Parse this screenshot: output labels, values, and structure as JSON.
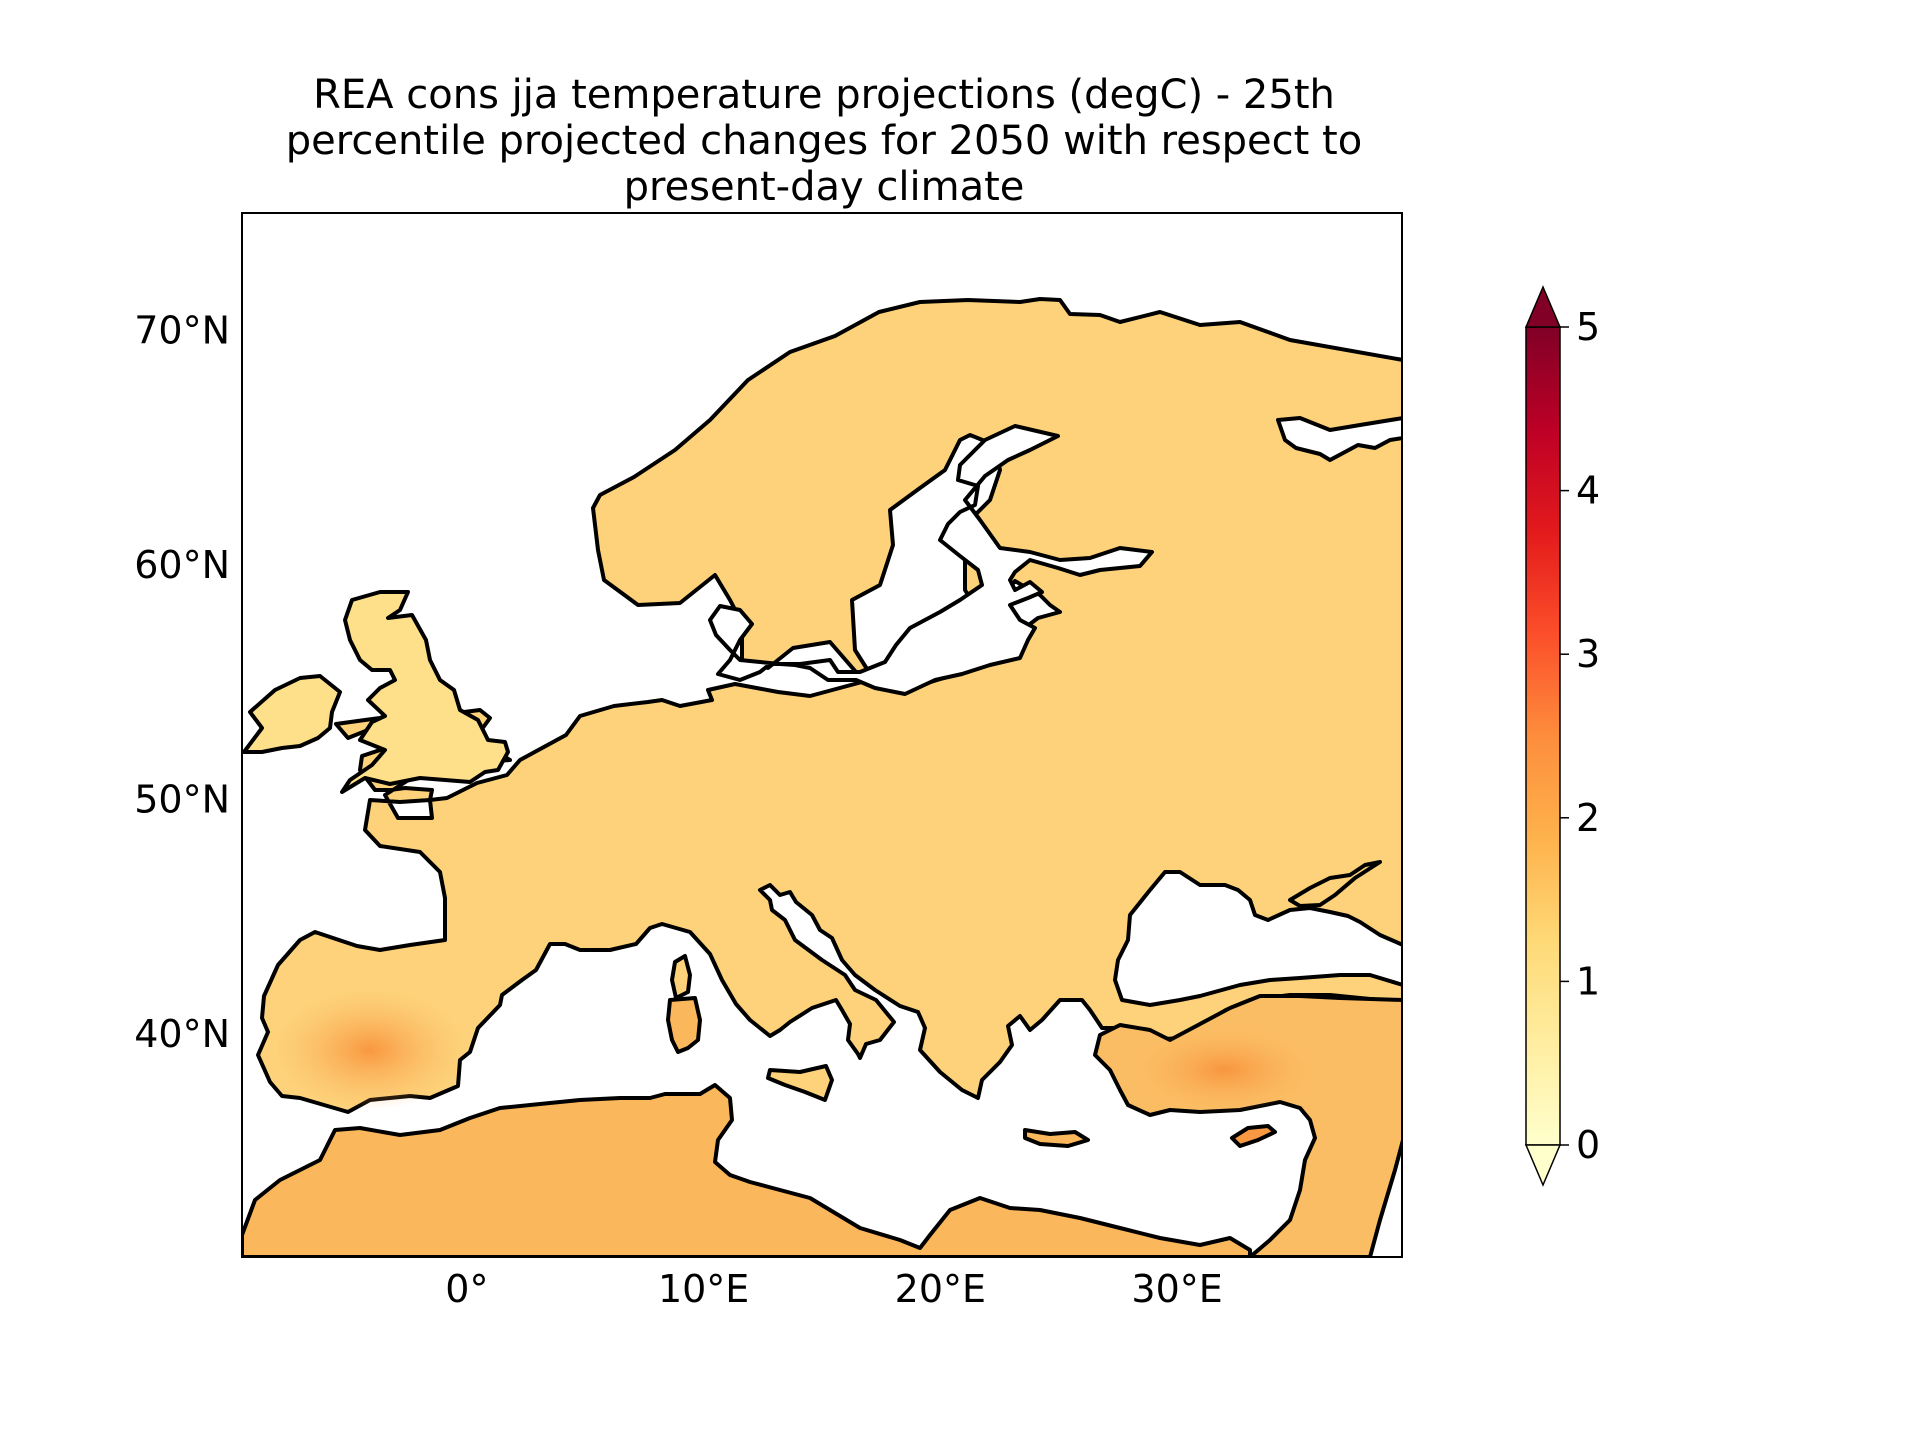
{
  "title": {
    "lines": [
      "REA cons jja temperature projections (degC) - 25th",
      "percentile projected changes for 2050 with respect to",
      "present-day climate"
    ]
  },
  "map": {
    "lon_range": [
      -9.5,
      39.5
    ],
    "lat_range": [
      30.5,
      75.0
    ],
    "lat_ticks": [
      {
        "value": 70,
        "label": "70°N"
      },
      {
        "value": 60,
        "label": "60°N"
      },
      {
        "value": 50,
        "label": "50°N"
      },
      {
        "value": 40,
        "label": "40°N"
      }
    ],
    "lon_ticks": [
      {
        "value": 0,
        "label": "0°"
      },
      {
        "value": 10,
        "label": "10°E"
      },
      {
        "value": 20,
        "label": "20°E"
      },
      {
        "value": 30,
        "label": "30°E"
      }
    ],
    "colormap": "YlOrRd",
    "coastline_color": "#000000"
  },
  "colorbar": {
    "min": 0,
    "max": 5,
    "extend": "both",
    "ticks": [
      "0",
      "1",
      "2",
      "3",
      "4",
      "5"
    ],
    "colors": [
      "#ffffcc",
      "#ffeda0",
      "#fed976",
      "#feb24c",
      "#fd8d3c",
      "#fc4e2a",
      "#e31a1c",
      "#bd0026",
      "#800026"
    ]
  }
}
